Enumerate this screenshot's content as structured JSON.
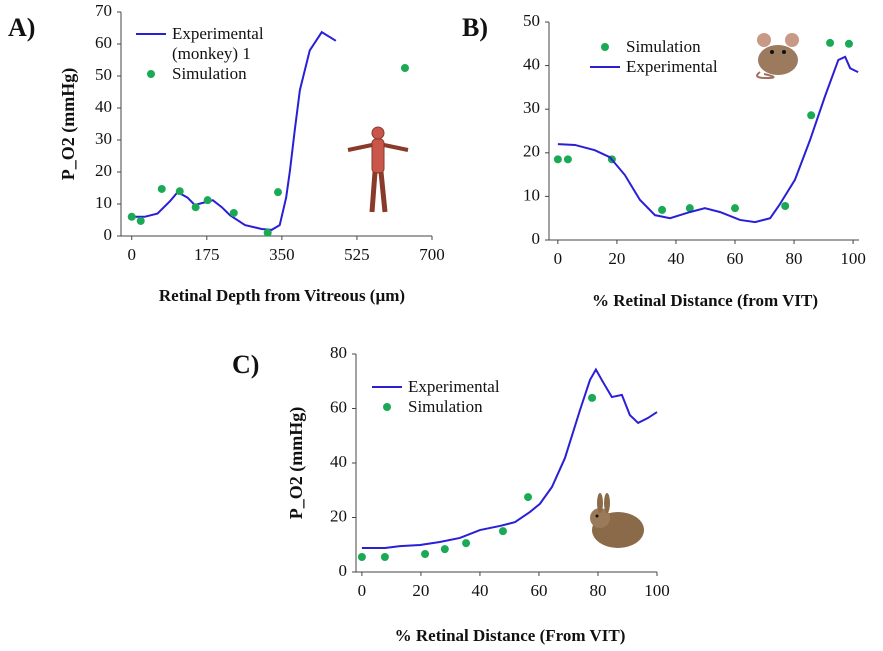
{
  "chart_data": [
    {
      "type": "line",
      "label": "A)",
      "ylabel": "P_O2 (mmHg)",
      "xlabel": "Retinal Depth from Vitreous (µm)",
      "xlim": [
        -25,
        700
      ],
      "ylim": [
        0,
        70
      ],
      "xticks": [
        0,
        175,
        350,
        525,
        700
      ],
      "yticks": [
        0,
        10,
        20,
        30,
        40,
        50,
        60,
        70
      ],
      "series": [
        {
          "name": "Experimental (monkey) 1",
          "type": "line",
          "color": "#2a1fd6",
          "x": [
            0,
            30,
            60,
            90,
            107,
            130,
            147,
            170,
            189,
            210,
            229,
            264,
            303,
            326,
            345,
            360,
            369,
            380,
            392,
            415,
            443,
            476
          ],
          "values": [
            6,
            6,
            7,
            11,
            13.7,
            12,
            9.7,
            10.5,
            11.2,
            9,
            6.5,
            3.4,
            2.2,
            1.9,
            3.4,
            12,
            20.6,
            33,
            45.6,
            58,
            63.7,
            61
          ]
        },
        {
          "name": "Simulation",
          "type": "scatter",
          "color": "#1aaa55",
          "x": [
            0,
            21,
            70,
            112,
            149,
            177,
            238,
            317,
            341,
            637
          ],
          "values": [
            6,
            4.7,
            14.7,
            14,
            9,
            11.2,
            7.2,
            1,
            13.7,
            52.5
          ]
        }
      ]
    },
    {
      "type": "line",
      "label": "B)",
      "xlabel": "% Retinal Distance (from VIT)",
      "xlim": [
        -3,
        102
      ],
      "ylim": [
        0,
        50
      ],
      "xticks": [
        0,
        20,
        40,
        60,
        80,
        100
      ],
      "yticks": [
        0,
        10,
        20,
        30,
        40,
        50
      ],
      "series": [
        {
          "name": "Simulation",
          "type": "scatter",
          "color": "#1aaa55",
          "x": [
            0,
            3.4,
            18.3,
            35.3,
            44.7,
            60,
            77,
            85.8,
            92.2,
            98.6
          ],
          "values": [
            18.5,
            18.5,
            18.5,
            6.9,
            7.3,
            7.3,
            7.8,
            28.6,
            45.2,
            45
          ]
        },
        {
          "name": "Experimental",
          "type": "line",
          "color": "#2a1fd6",
          "x": [
            0,
            5.8,
            12.5,
            17.6,
            22.7,
            27.8,
            32.9,
            38,
            44.7,
            49.8,
            55,
            61.7,
            66.8,
            71.9,
            75,
            80.3,
            85.4,
            90.5,
            95,
            97.3,
            99,
            101.7
          ],
          "values": [
            22,
            21.8,
            20.6,
            19,
            14.9,
            9.2,
            5.7,
            5,
            6.4,
            7.3,
            6.4,
            4.6,
            4.1,
            5,
            8,
            13.8,
            22.9,
            33,
            41.3,
            42,
            39.4,
            38.5
          ]
        }
      ]
    },
    {
      "type": "line",
      "label": "C)",
      "ylabel": "P_O2 (mmHg)",
      "xlabel": "% Retinal Distance (From VIT)",
      "xlim": [
        -2,
        100
      ],
      "ylim": [
        0,
        80
      ],
      "xticks": [
        0,
        20,
        40,
        60,
        80,
        100
      ],
      "yticks": [
        0,
        20,
        40,
        60,
        80
      ],
      "series": [
        {
          "name": "Experimental",
          "type": "line",
          "color": "#2a1fd6",
          "x": [
            0,
            7.8,
            12.9,
            19.7,
            26.4,
            33.2,
            40,
            46.8,
            51.9,
            56.9,
            60.3,
            64.4,
            68.8,
            73.9,
            77.3,
            79.3,
            81.7,
            84.7,
            88.1,
            90.8,
            93.6,
            96.9,
            100
          ],
          "values": [
            8.8,
            8.8,
            9.5,
            9.9,
            11,
            12.5,
            15.4,
            16.9,
            18.3,
            22,
            25,
            31.2,
            41.8,
            59.4,
            70.5,
            74.3,
            69.7,
            64.2,
            65,
            57.6,
            54.7,
            56.5,
            58.7
          ]
        },
        {
          "name": "Simulation",
          "type": "scatter",
          "color": "#1aaa55",
          "x": [
            0,
            7.8,
            21.4,
            28.1,
            35.3,
            47.8,
            56.3,
            78
          ],
          "values": [
            5.5,
            5.5,
            6.6,
            8.4,
            10.6,
            15,
            27.5,
            63.9
          ]
        }
      ]
    }
  ]
}
